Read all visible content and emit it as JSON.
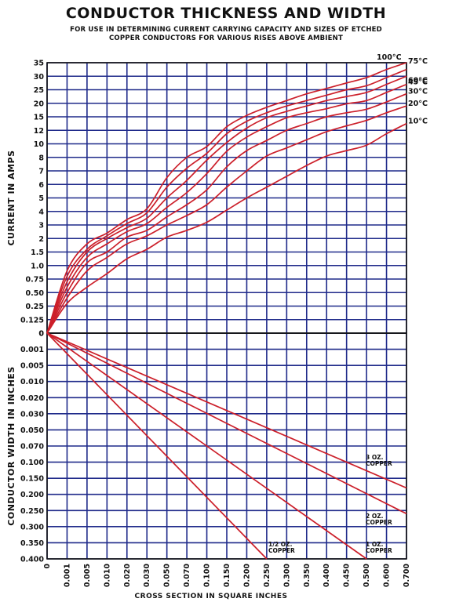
{
  "chart_data": {
    "type": "line",
    "title": "CONDUCTOR THICKNESS AND WIDTH",
    "subtitle_lines": [
      "FOR USE IN DETERMINING CURRENT CARRYING CAPACITY AND SIZES OF ETCHED",
      "COPPER CONDUCTORS FOR VARIOUS RISES ABOVE AMBIENT"
    ],
    "xlabel": "CROSS SECTION IN SQUARE INCHES",
    "x_ticks": [
      "0",
      "0.001",
      "0.005",
      "0.010",
      "0.020",
      "0.030",
      "0.050",
      "0.070",
      "0.100",
      "0.150",
      "0.200",
      "0.250",
      "0.300",
      "0.350",
      "0.400",
      "0.450",
      "0.500",
      "0.600",
      "0.700"
    ],
    "top_panel": {
      "ylabel": "CURRENT IN AMPS",
      "y_ticks": [
        "0",
        "0.125",
        "0.25",
        "0.50",
        "0.75",
        "1.0",
        "1.5",
        "2",
        "3",
        "4",
        "5",
        "6",
        "7",
        "8",
        "10",
        "12",
        "15",
        "20",
        "25",
        "30",
        "35"
      ],
      "series": [
        {
          "name": "100°C",
          "x": [
            0,
            0.001,
            0.005,
            0.01,
            0.02,
            0.03,
            0.05,
            0.07,
            0.1,
            0.15,
            0.2,
            0.25,
            0.3,
            0.35,
            0.4,
            0.45,
            0.5,
            0.6,
            0.7
          ],
          "y": [
            0,
            0.9,
            1.8,
            2.4,
            3.4,
            4.2,
            6.5,
            8.0,
            9.6,
            12.8,
            15.5,
            18.5,
            21.0,
            23.5,
            25.5,
            27.5,
            29.5,
            32.5,
            35.5
          ]
        },
        {
          "name": "75°C",
          "x": [
            0,
            0.001,
            0.005,
            0.01,
            0.02,
            0.03,
            0.05,
            0.07,
            0.1,
            0.15,
            0.2,
            0.25,
            0.3,
            0.35,
            0.4,
            0.45,
            0.5,
            0.6,
            0.7
          ],
          "y": [
            0,
            0.8,
            1.6,
            2.2,
            3.1,
            3.9,
            5.8,
            7.2,
            8.6,
            11.5,
            14.0,
            16.5,
            19.0,
            21.0,
            23.0,
            25.0,
            26.5,
            29.5,
            32.5
          ]
        },
        {
          "name": "60°C",
          "x": [
            0,
            0.001,
            0.005,
            0.01,
            0.02,
            0.03,
            0.05,
            0.07,
            0.1,
            0.15,
            0.2,
            0.25,
            0.3,
            0.35,
            0.4,
            0.45,
            0.5,
            0.6,
            0.7
          ],
          "y": [
            0,
            0.7,
            1.5,
            2.0,
            2.8,
            3.5,
            5.0,
            6.3,
            7.8,
            10.2,
            12.5,
            14.8,
            17.0,
            19.0,
            21.0,
            22.5,
            24.0,
            27.0,
            30.0
          ]
        },
        {
          "name": "45°C",
          "x": [
            0,
            0.001,
            0.005,
            0.01,
            0.02,
            0.03,
            0.05,
            0.07,
            0.1,
            0.15,
            0.2,
            0.25,
            0.3,
            0.35,
            0.4,
            0.45,
            0.5,
            0.6,
            0.7
          ],
          "y": [
            0,
            0.6,
            1.3,
            1.8,
            2.5,
            3.1,
            4.3,
            5.4,
            6.8,
            8.9,
            11.0,
            12.8,
            14.8,
            16.5,
            18.0,
            19.8,
            21.0,
            24.0,
            27.0
          ]
        },
        {
          "name": "30°C",
          "x": [
            0,
            0.001,
            0.005,
            0.01,
            0.02,
            0.03,
            0.05,
            0.07,
            0.1,
            0.15,
            0.2,
            0.25,
            0.3,
            0.35,
            0.4,
            0.45,
            0.5,
            0.6,
            0.7
          ],
          "y": [
            0,
            0.5,
            1.1,
            1.5,
            2.1,
            2.6,
            3.6,
            4.5,
            5.6,
            7.3,
            9.0,
            10.5,
            12.0,
            13.5,
            15.0,
            16.5,
            17.8,
            20.5,
            23.5
          ]
        },
        {
          "name": "20°C",
          "x": [
            0,
            0.001,
            0.005,
            0.01,
            0.02,
            0.03,
            0.05,
            0.07,
            0.1,
            0.15,
            0.2,
            0.25,
            0.3,
            0.35,
            0.4,
            0.45,
            0.5,
            0.6,
            0.7
          ],
          "y": [
            0,
            0.4,
            0.9,
            1.3,
            1.8,
            2.2,
            3.0,
            3.7,
            4.5,
            5.8,
            7.0,
            8.2,
            9.4,
            10.6,
            11.8,
            13.0,
            14.2,
            16.5,
            19.0
          ]
        },
        {
          "name": "10°C",
          "x": [
            0,
            0.001,
            0.005,
            0.01,
            0.02,
            0.03,
            0.05,
            0.07,
            0.1,
            0.15,
            0.2,
            0.25,
            0.3,
            0.35,
            0.4,
            0.45,
            0.5,
            0.6,
            0.7
          ],
          "y": [
            0,
            0.3,
            0.6,
            0.85,
            1.25,
            1.6,
            2.1,
            2.6,
            3.2,
            4.1,
            5.0,
            5.8,
            6.6,
            7.4,
            8.2,
            9.0,
            9.8,
            11.5,
            13.5
          ]
        }
      ]
    },
    "bottom_panel": {
      "ylabel": "CONDUCTOR WIDTH IN INCHES",
      "y_ticks": [
        "0",
        "0.001",
        "0.005",
        "0.010",
        "0.020",
        "0.030",
        "0.050",
        "0.070",
        "0.100",
        "0.150",
        "0.200",
        "0.250",
        "0.300",
        "0.350",
        "0.400"
      ],
      "series": [
        {
          "name": "1/2 OZ. COPPER",
          "x": [
            0,
            0.25
          ],
          "y": [
            0,
            0.4
          ]
        },
        {
          "name": "1 OZ. COPPER",
          "x": [
            0,
            0.5
          ],
          "y": [
            0,
            0.4
          ]
        },
        {
          "name": "2 OZ. COPPER",
          "x": [
            0,
            0.7
          ],
          "y": [
            0,
            0.26
          ]
        },
        {
          "name": "3 OZ. COPPER",
          "x": [
            0,
            0.7
          ],
          "y": [
            0,
            0.18
          ]
        }
      ]
    },
    "colors": {
      "grid": "#1f2a8a",
      "curve": "#cc1f2a"
    }
  }
}
